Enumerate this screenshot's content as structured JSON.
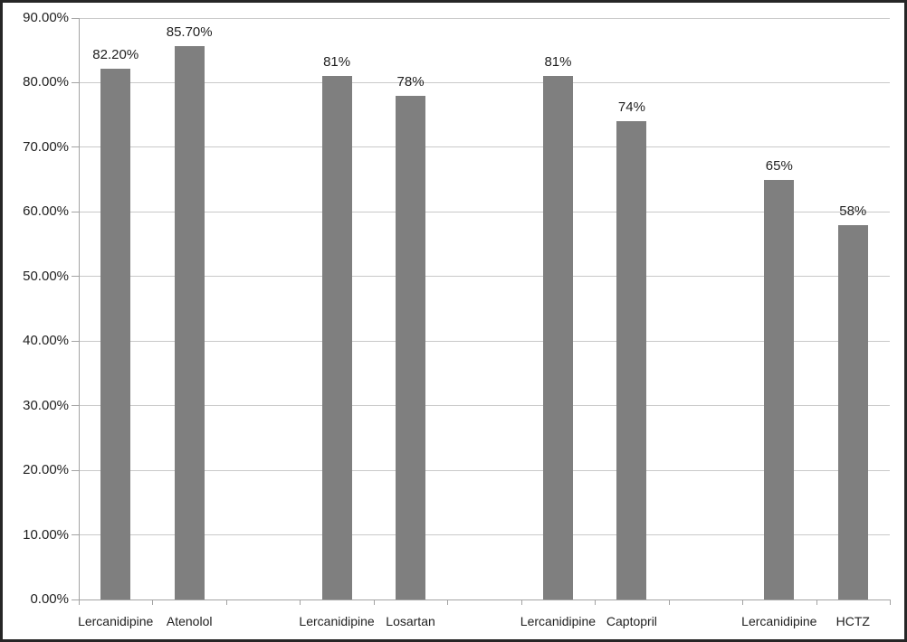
{
  "chart_data": {
    "type": "bar",
    "title": "",
    "xlabel": "",
    "ylabel": "",
    "categories": [
      "Lercanidipine",
      "Atenolol",
      "Lercanidipine",
      "Losartan",
      "Lercanidipine",
      "Captopril",
      "Lercanidipine",
      "HCTZ"
    ],
    "values": [
      82.2,
      85.7,
      81,
      78,
      81,
      74,
      65,
      58
    ],
    "value_labels": [
      "82.20%",
      "85.70%",
      "81%",
      "78%",
      "81%",
      "74%",
      "65%",
      "58%"
    ],
    "series": [
      {
        "name": "",
        "values": [
          82.2,
          85.7,
          81,
          78,
          81,
          74,
          65,
          58
        ]
      }
    ],
    "groups": [
      {
        "bars": [
          {
            "category": "Lercanidipine",
            "label": "82.20%",
            "value": 82.2
          },
          {
            "category": "Atenolol",
            "label": "85.70%",
            "value": 85.7
          }
        ]
      },
      {
        "bars": [
          {
            "category": "Lercanidipine",
            "label": "81%",
            "value": 81
          },
          {
            "category": "Losartan",
            "label": "78%",
            "value": 78
          }
        ]
      },
      {
        "bars": [
          {
            "category": "Lercanidipine",
            "label": "81%",
            "value": 81
          },
          {
            "category": "Captopril",
            "label": "74%",
            "value": 74
          }
        ]
      },
      {
        "bars": [
          {
            "category": "Lercanidipine",
            "label": "65%",
            "value": 65
          },
          {
            "category": "HCTZ",
            "label": "58%",
            "value": 58
          }
        ]
      }
    ],
    "group_size": 2,
    "y_axis": {
      "min": 0,
      "max": 90,
      "step": 10,
      "tick_labels": [
        "0.00%",
        "10.00%",
        "20.00%",
        "30.00%",
        "40.00%",
        "50.00%",
        "60.00%",
        "70.00%",
        "80.00%",
        "90.00%"
      ]
    },
    "ylim": [
      0,
      90
    ],
    "grid": true,
    "legend": "none",
    "colors": {
      "bar": "#7f7f7f",
      "gridline": "#c9c9c9",
      "axis": "#a3a3a3",
      "text": "#1f1f1f",
      "frame_border": "#262626",
      "background": "#ffffff"
    }
  }
}
